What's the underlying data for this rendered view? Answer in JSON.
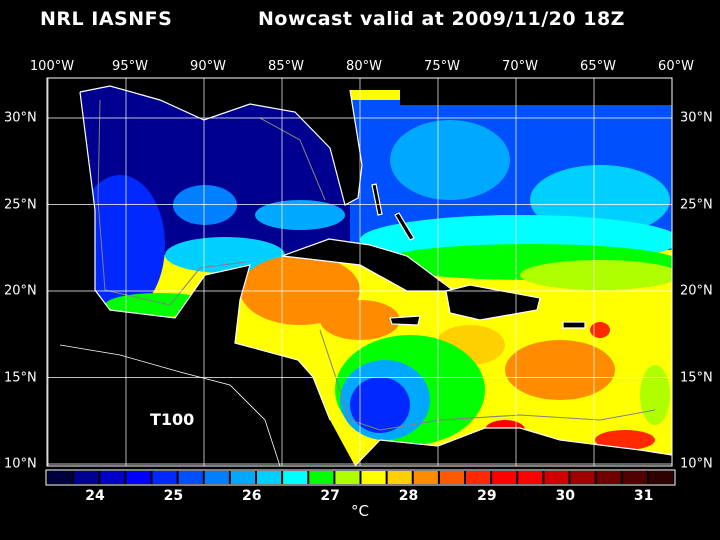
{
  "header": {
    "source": "NRL IASNFS",
    "product": "Nowcast",
    "valid": "valid at 2009/11/20 18Z"
  },
  "map": {
    "layer_label": "T100",
    "lon_labels": [
      "100°W",
      "95°W",
      "90°W",
      "85°W",
      "80°W",
      "75°W",
      "70°W",
      "65°W",
      "60°W"
    ],
    "lat_labels": [
      "30°N",
      "25°N",
      "20°N",
      "15°N",
      "10°N"
    ],
    "land_color": "#000000",
    "coastline_color": "#ffffff",
    "depth_contour_color": "#808080"
  },
  "colorbar": {
    "unit": "°C",
    "tick_labels": [
      "24",
      "25",
      "26",
      "27",
      "28",
      "29",
      "30",
      "31"
    ],
    "colors": [
      "#00003c",
      "#000090",
      "#0000c8",
      "#0000ff",
      "#0028ff",
      "#0050ff",
      "#0080ff",
      "#00a8ff",
      "#00d0ff",
      "#00ffff",
      "#00ff00",
      "#b0ff00",
      "#ffff00",
      "#ffd000",
      "#ff8c00",
      "#ff5a00",
      "#ff2800",
      "#ff0000",
      "#ff0000",
      "#d00000",
      "#a00000",
      "#700000",
      "#500000",
      "#300000"
    ]
  }
}
